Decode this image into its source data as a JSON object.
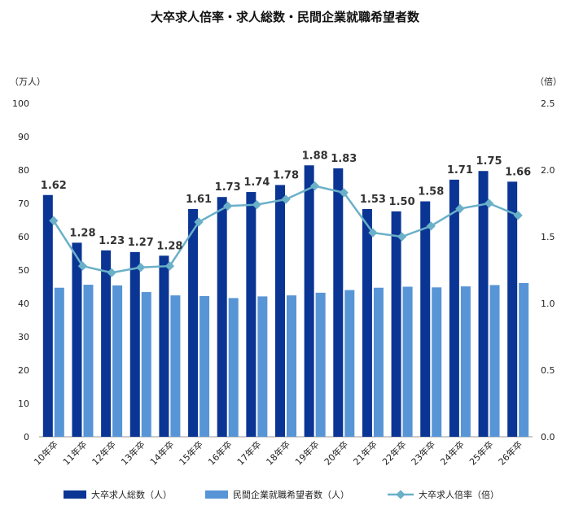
{
  "chart_data": {
    "type": "bar",
    "title": "大卒求人倍率・求人総数・民間企業就職希望者数",
    "left_unit": "（万人）",
    "right_unit": "（倍）",
    "categories": [
      "10年卒",
      "11年卒",
      "12年卒",
      "13年卒",
      "14年卒",
      "15年卒",
      "16年卒",
      "17年卒",
      "18年卒",
      "19年卒",
      "20年卒",
      "21年卒",
      "22年卒",
      "23年卒",
      "24年卒",
      "25年卒",
      "26年卒"
    ],
    "left_ylim": [
      0,
      100
    ],
    "left_ticks": [
      "0",
      "10",
      "20",
      "30",
      "40",
      "50",
      "60",
      "70",
      "80",
      "90",
      "100"
    ],
    "right_ylim": [
      0,
      2.5
    ],
    "right_ticks": [
      "0.0",
      "0.5",
      "1.0",
      "1.5",
      "2.0",
      "2.5"
    ],
    "series": [
      {
        "name": "大卒求人総数（人）",
        "kind": "bar",
        "axis": "left",
        "color": "#0a3594",
        "values": [
          72.5,
          58.2,
          55.9,
          55.4,
          54.3,
          68.3,
          71.9,
          73.4,
          75.5,
          81.4,
          80.5,
          68.3,
          67.6,
          70.6,
          77.1,
          79.7,
          76.5
        ]
      },
      {
        "name": "民間企業就職希望者数（人）",
        "kind": "bar",
        "axis": "left",
        "color": "#5795d6",
        "values": [
          44.7,
          45.6,
          45.4,
          43.4,
          42.4,
          42.2,
          41.6,
          42.1,
          42.4,
          43.2,
          44.0,
          44.7,
          45.0,
          44.8,
          45.1,
          45.5,
          46.1
        ]
      },
      {
        "name": "大卒求人倍率（倍）",
        "kind": "line",
        "axis": "right",
        "color": "#6ab0c8",
        "values": [
          1.62,
          1.28,
          1.23,
          1.27,
          1.28,
          1.61,
          1.73,
          1.74,
          1.78,
          1.88,
          1.83,
          1.53,
          1.5,
          1.58,
          1.71,
          1.75,
          1.66
        ],
        "labels": [
          "1.62",
          "1.28",
          "1.23",
          "1.27",
          "1.28",
          "1.61",
          "1.73",
          "1.74",
          "1.78",
          "1.88",
          "1.83",
          "1.53",
          "1.50",
          "1.58",
          "1.71",
          "1.75",
          "1.66"
        ]
      }
    ],
    "legend_position": "bottom",
    "grid": false
  }
}
